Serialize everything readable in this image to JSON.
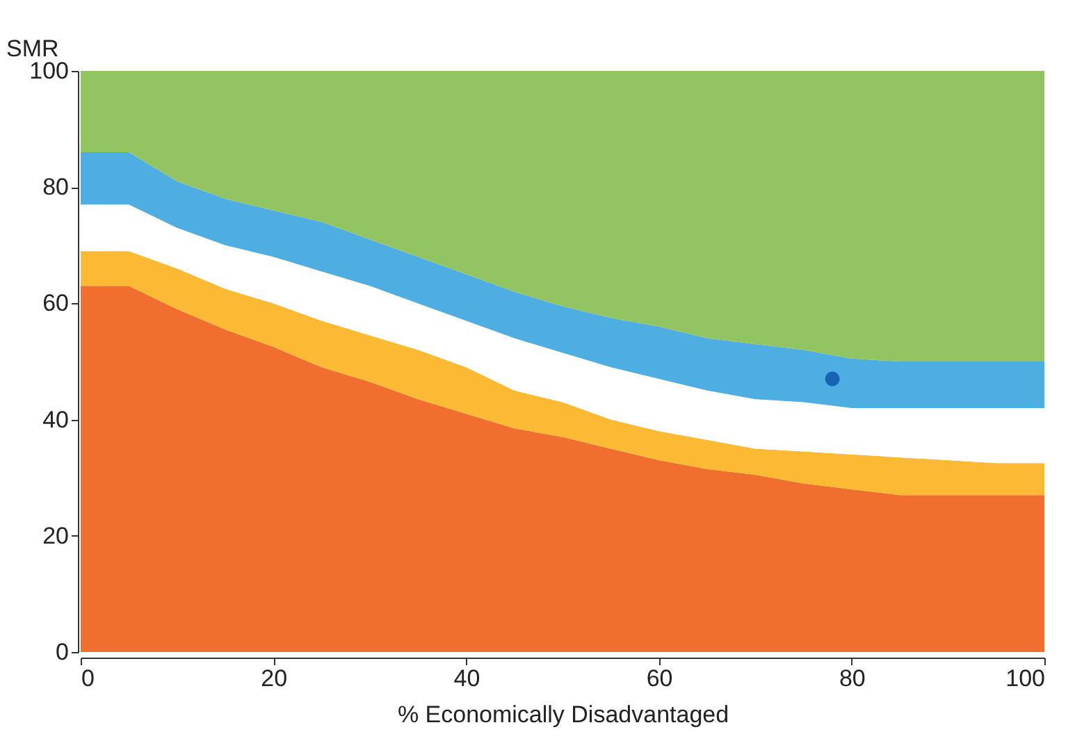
{
  "chart_data": {
    "type": "area",
    "stacked": true,
    "xlabel": "% Economically Disadvantaged",
    "ylabel": "SMR",
    "x": [
      0,
      5,
      10,
      15,
      20,
      25,
      30,
      35,
      40,
      45,
      50,
      55,
      60,
      65,
      70,
      75,
      80,
      85,
      90,
      95,
      100
    ],
    "xlim": [
      0,
      100
    ],
    "xticks": [
      0,
      20,
      40,
      60,
      80,
      100
    ],
    "ylim": [
      0,
      100
    ],
    "yticks": [
      0,
      20,
      40,
      60,
      80,
      100
    ],
    "series": [
      {
        "color": "#f06e2e",
        "values": [
          63,
          63,
          59,
          55.5,
          52.5,
          49,
          46.5,
          43.5,
          41,
          38.5,
          37,
          35,
          33,
          31.5,
          30.5,
          29,
          28,
          27,
          27,
          27,
          27
        ]
      },
      {
        "color": "#fbb934",
        "values": [
          6,
          6,
          7,
          7,
          7.5,
          8,
          8,
          8.5,
          8,
          6.5,
          6,
          5,
          5,
          5,
          4.5,
          5.5,
          6,
          6.5,
          6,
          5.5,
          5.5
        ]
      },
      {
        "color": "#ffffff",
        "values": [
          8,
          8,
          7,
          7.5,
          8,
          8.5,
          8.5,
          8,
          8,
          9,
          8.5,
          9,
          9,
          8.5,
          8.5,
          8.5,
          8,
          8.5,
          9,
          9.5,
          9.5
        ]
      },
      {
        "color": "#4eaee2",
        "values": [
          9,
          9,
          8,
          8,
          8,
          8.5,
          8,
          8,
          8,
          8,
          8,
          8.5,
          9,
          9,
          9.5,
          9,
          8.5,
          8,
          8,
          8,
          8
        ]
      },
      {
        "color": "#93c462",
        "values": [
          14,
          14,
          19,
          22,
          24,
          26,
          29,
          32,
          35,
          38,
          40.5,
          42.5,
          44,
          46,
          47,
          48,
          49.5,
          50,
          50,
          50,
          50
        ]
      },
      {
        "type": "scatter",
        "marker": "circle",
        "color": "#1565b0",
        "x": [
          78
        ],
        "values": [
          47
        ]
      }
    ]
  }
}
